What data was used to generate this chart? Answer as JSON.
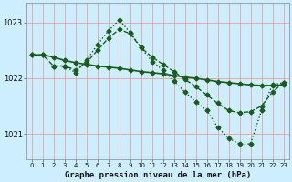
{
  "title": "Graphe pression niveau de la mer (hPa)",
  "bg_color": "#cceeff",
  "grid_color": "#e8a0a0",
  "line_color": "#1a5c1a",
  "x_ticks": [
    0,
    1,
    2,
    3,
    4,
    5,
    6,
    7,
    8,
    9,
    10,
    11,
    12,
    13,
    14,
    15,
    16,
    17,
    18,
    19,
    20,
    21,
    22,
    23
  ],
  "ylim": [
    1020.55,
    1023.35
  ],
  "yticks": [
    1021,
    1022,
    1023
  ],
  "series": [
    {
      "x": [
        0,
        1,
        2,
        3,
        4,
        5,
        6,
        7,
        8,
        9,
        10,
        11,
        12,
        13,
        14,
        15,
        16,
        17,
        18,
        19,
        20,
        21,
        22,
        23
      ],
      "y": [
        1022.42,
        1022.42,
        1022.38,
        1022.32,
        1022.28,
        1022.25,
        1022.22,
        1022.2,
        1022.18,
        1022.15,
        1022.12,
        1022.1,
        1022.08,
        1022.05,
        1022.02,
        1022.0,
        1021.97,
        1021.94,
        1021.92,
        1021.9,
        1021.88,
        1021.87,
        1021.87,
        1021.88
      ],
      "style": "-",
      "marker": "D",
      "markersize": 2.5,
      "lw": 1.2
    },
    {
      "x": [
        0,
        1,
        2,
        3,
        4,
        5,
        6,
        7,
        8,
        9,
        10,
        11,
        12,
        13,
        14,
        15,
        16,
        17,
        18,
        19,
        20,
        21,
        22,
        23
      ],
      "y": [
        1022.42,
        1022.42,
        1022.22,
        1022.22,
        1022.15,
        1022.28,
        1022.5,
        1022.72,
        1022.88,
        1022.8,
        1022.55,
        1022.38,
        1022.25,
        1022.12,
        1021.98,
        1021.85,
        1021.7,
        1021.55,
        1021.42,
        1021.38,
        1021.4,
        1021.5,
        1021.75,
        1021.92
      ],
      "style": "--",
      "marker": "D",
      "markersize": 2.5,
      "lw": 1.0
    },
    {
      "x": [
        2,
        3,
        4,
        5,
        6,
        7,
        8,
        9,
        10,
        11,
        12,
        13,
        14,
        15,
        16,
        17,
        18,
        19,
        20,
        21,
        22,
        23
      ],
      "y": [
        1022.22,
        1022.22,
        1022.1,
        1022.32,
        1022.6,
        1022.85,
        1023.05,
        1022.82,
        1022.55,
        1022.3,
        1022.15,
        1021.95,
        1021.75,
        1021.58,
        1021.42,
        1021.12,
        1020.92,
        1020.82,
        1020.82,
        1021.42,
        1021.88,
        1021.92
      ],
      "style": ":",
      "marker": "D",
      "markersize": 2.5,
      "lw": 1.0
    }
  ]
}
